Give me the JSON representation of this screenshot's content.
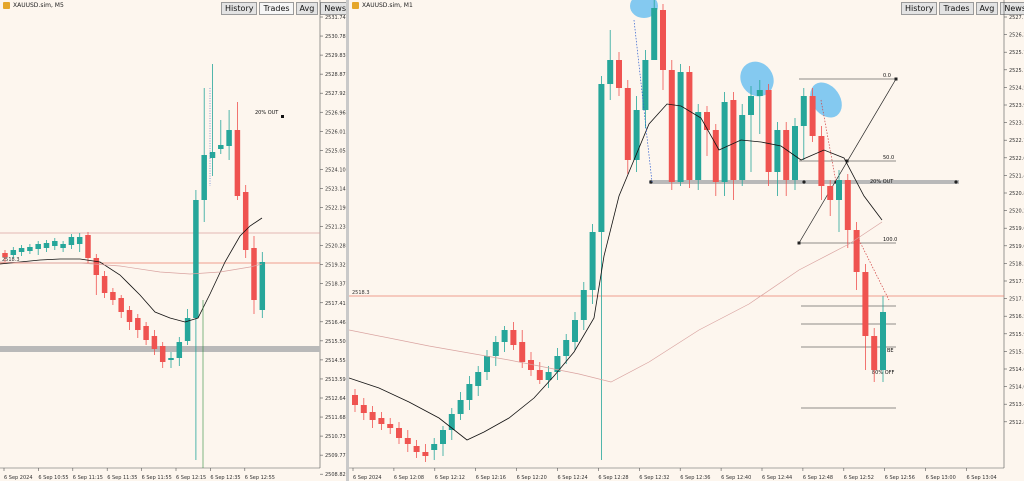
{
  "colors": {
    "background": "#fdf6ee",
    "bull": "#26a69a",
    "bear": "#ef5350",
    "highlight": "#6ec1f0"
  },
  "left_chart": {
    "symbol": "XAUUSD.sim, M5",
    "tabs": [
      "History",
      "Trades",
      "Avg",
      "News"
    ],
    "y_labels": [
      "2531.743",
      "2530.788",
      "2529.833",
      "2528.878",
      "2527.923",
      "2526.968",
      "2526.013",
      "2525.058",
      "2524.103",
      "2523.148",
      "2522.193",
      "2521.238",
      "2520.283",
      "2519.328",
      "2518.373",
      "2517.418",
      "2516.463",
      "2515.508",
      "2514.553",
      "2513.598",
      "2512.643",
      "2511.688",
      "2510.733",
      "2509.778",
      "2508.823",
      "2507.868"
    ],
    "x_labels": [
      "6 Sep 2024",
      "6 Sep 10:55",
      "6 Sep 11:15",
      "6 Sep 11:35",
      "6 Sep 11:55",
      "6 Sep 12:15",
      "6 Sep 12:35",
      "6 Sep 12:55"
    ],
    "annotations": [
      "20% OUT",
      "2518.3"
    ]
  },
  "right_chart": {
    "symbol": "XAUUSD.sim, M1",
    "tabs": [
      "History",
      "Trades",
      "Avg",
      "News"
    ],
    "y_labels": [
      "2527.1",
      "2526.3",
      "2525.7",
      "2525.1",
      "2524.5",
      "2523.9",
      "2523.3",
      "2522.7",
      "2522.0",
      "2521.4",
      "2520.8",
      "2520.2",
      "2519.6",
      "2519.0",
      "2518.3",
      "2517.7",
      "2517.1",
      "2516.5",
      "2515.9",
      "2515.3",
      "2514.6",
      "2514.0",
      "2513.4",
      "2512.8"
    ],
    "x_labels": [
      "6 Sep 2024",
      "6 Sep 12:08",
      "6 Sep 12:12",
      "6 Sep 12:16",
      "6 Sep 12:20",
      "6 Sep 12:24",
      "6 Sep 12:28",
      "6 Sep 12:32",
      "6 Sep 12:36",
      "6 Sep 12:40",
      "6 Sep 12:44",
      "6 Sep 12:48",
      "6 Sep 12:52",
      "6 Sep 12:56",
      "6 Sep 13:00",
      "6 Sep 13:04"
    ],
    "fib_labels": [
      "0.0",
      "50.0",
      "100.0"
    ],
    "annotations": [
      "20% OUT",
      "BE",
      "80% OFF",
      "2518.3"
    ]
  }
}
